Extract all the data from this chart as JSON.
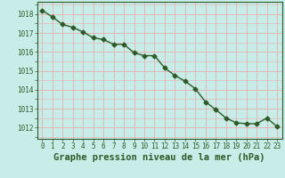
{
  "x": [
    0,
    1,
    2,
    3,
    4,
    5,
    6,
    7,
    8,
    9,
    10,
    11,
    12,
    13,
    14,
    15,
    16,
    17,
    18,
    19,
    20,
    21,
    22,
    23
  ],
  "y": [
    1018.2,
    1017.85,
    1017.45,
    1017.3,
    1017.05,
    1016.75,
    1016.65,
    1016.4,
    1016.4,
    1015.95,
    1015.8,
    1015.8,
    1015.15,
    1014.75,
    1014.45,
    1014.05,
    1013.35,
    1012.95,
    1012.5,
    1012.25,
    1012.2,
    1012.2,
    1012.5,
    1012.05
  ],
  "xlabel": "Graphe pression niveau de la mer (hPa)",
  "ylim_min": 1011.4,
  "ylim_max": 1018.65,
  "yticks": [
    1012,
    1013,
    1014,
    1015,
    1016,
    1017,
    1018
  ],
  "bg_color": "#c8ece8",
  "line_color": "#2d5a27",
  "grid_color_major": "#e8b0b0",
  "grid_color_minor": "#e8b0b0",
  "marker": "D",
  "marker_size": 2.5,
  "line_width": 1.0,
  "tick_fontsize": 5.5,
  "xlabel_fontsize": 7.5
}
